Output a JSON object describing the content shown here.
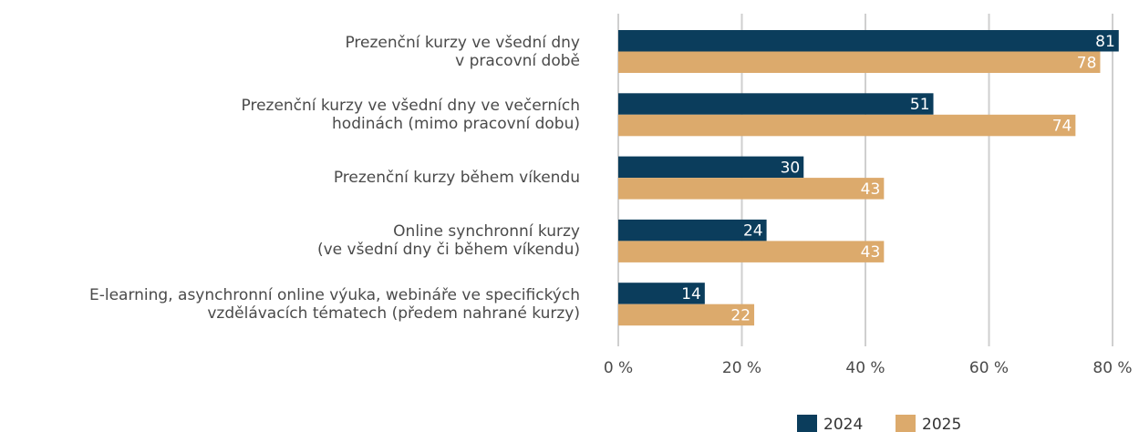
{
  "chart_data": {
    "type": "bar",
    "orientation": "horizontal",
    "categories": [
      "Prezenční kurzy ve všední dny\nv pracovní době",
      "Prezenční kurzy ve všední dny ve večerních\nhodinách (mimo pracovní dobu)",
      "Prezenční kurzy během víkendu",
      "Online synchronní kurzy\n(ve všední dny či během víkendu)",
      "E-learning, asynchronní online výuka, webináře ve specifických\nvzdělávacích tématech (předem nahrané kurzy)"
    ],
    "series": [
      {
        "name": "2024",
        "color": "#0b3d5c",
        "values": [
          81,
          51,
          30,
          24,
          14
        ]
      },
      {
        "name": "2025",
        "color": "#dcaa6c",
        "values": [
          78,
          74,
          43,
          43,
          22
        ]
      }
    ],
    "xlim": [
      0,
      80
    ],
    "xticks": [
      {
        "value": 0,
        "label": "0 %"
      },
      {
        "value": 20,
        "label": "20 %"
      },
      {
        "value": 40,
        "label": "40 %"
      },
      {
        "value": 60,
        "label": "60 %"
      },
      {
        "value": 80,
        "label": "80 %"
      }
    ],
    "grid": true,
    "legend": "bottom"
  }
}
